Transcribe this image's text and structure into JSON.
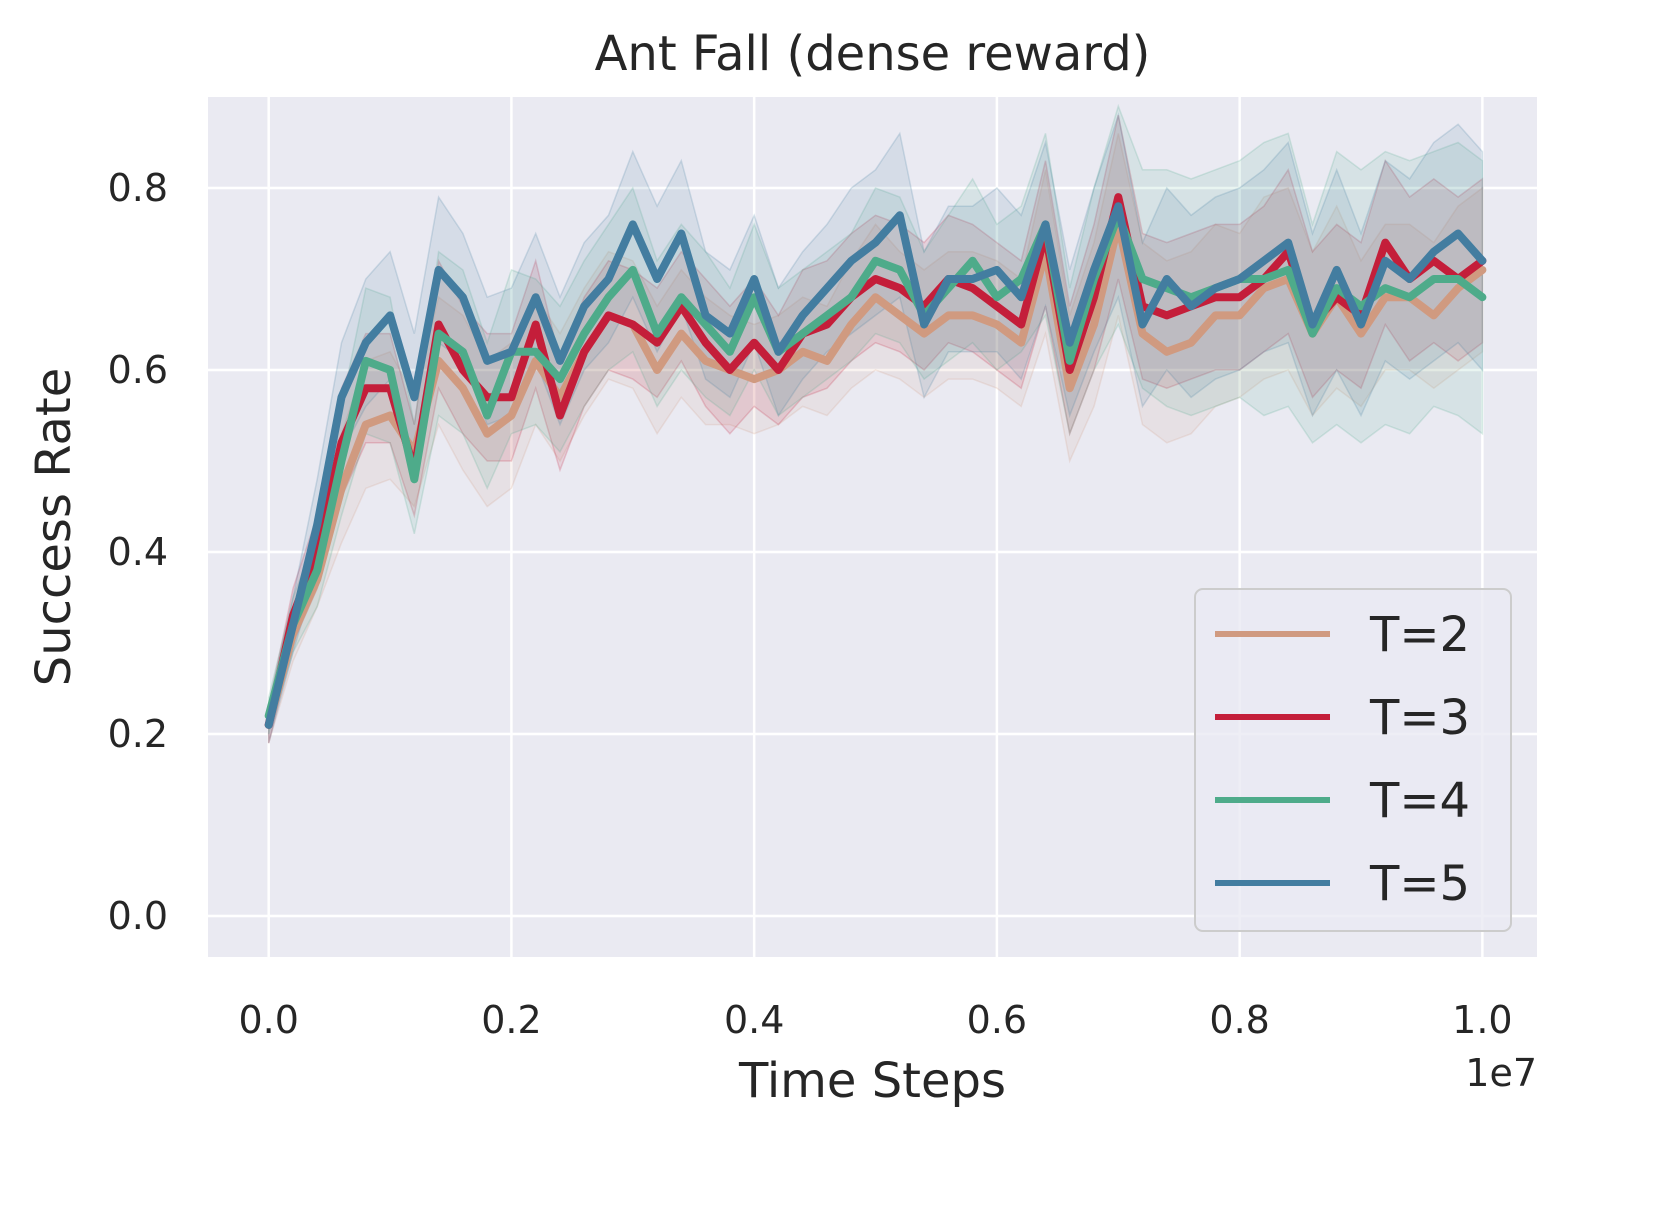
{
  "chart_data": {
    "type": "line",
    "title": "Ant Fall (dense reward)",
    "xlabel": "Time Steps",
    "ylabel": "Success Rate",
    "x_offset_label": "1e7",
    "xlim": [
      -0.05,
      1.045
    ],
    "ylim": [
      -0.045,
      0.9
    ],
    "xticks": [
      0.0,
      0.2,
      0.4,
      0.6,
      0.8,
      1.0
    ],
    "xtick_labels": [
      "0.0",
      "0.2",
      "0.4",
      "0.6",
      "0.8",
      "1.0"
    ],
    "yticks": [
      0.0,
      0.2,
      0.4,
      0.6,
      0.8
    ],
    "ytick_labels": [
      "0.0",
      "0.2",
      "0.4",
      "0.6",
      "0.8"
    ],
    "grid": true,
    "legend_position": "lower-right",
    "x": [
      0.0,
      0.02,
      0.04,
      0.06,
      0.08,
      0.1,
      0.12,
      0.14,
      0.16,
      0.18,
      0.2,
      0.22,
      0.24,
      0.26,
      0.28,
      0.3,
      0.32,
      0.34,
      0.36,
      0.38,
      0.4,
      0.42,
      0.44,
      0.46,
      0.48,
      0.5,
      0.52,
      0.54,
      0.56,
      0.58,
      0.6,
      0.62,
      0.64,
      0.66,
      0.68,
      0.7,
      0.72,
      0.74,
      0.76,
      0.78,
      0.8,
      0.82,
      0.84,
      0.86,
      0.88,
      0.9,
      0.92,
      0.94,
      0.96,
      0.98,
      1.0
    ],
    "series": [
      {
        "name": "T=2",
        "color": "#d09a80",
        "values": [
          0.21,
          0.31,
          0.37,
          0.47,
          0.54,
          0.55,
          0.51,
          0.61,
          0.58,
          0.53,
          0.55,
          0.61,
          0.57,
          0.62,
          0.66,
          0.65,
          0.6,
          0.64,
          0.61,
          0.6,
          0.59,
          0.6,
          0.62,
          0.61,
          0.65,
          0.68,
          0.66,
          0.64,
          0.66,
          0.66,
          0.65,
          0.63,
          0.73,
          0.58,
          0.65,
          0.76,
          0.64,
          0.62,
          0.63,
          0.66,
          0.66,
          0.69,
          0.7,
          0.64,
          0.68,
          0.64,
          0.68,
          0.68,
          0.66,
          0.69,
          0.71
        ],
        "lower": [
          0.19,
          0.28,
          0.34,
          0.41,
          0.47,
          0.48,
          0.45,
          0.54,
          0.49,
          0.45,
          0.47,
          0.54,
          0.5,
          0.55,
          0.59,
          0.58,
          0.53,
          0.57,
          0.54,
          0.54,
          0.53,
          0.54,
          0.56,
          0.55,
          0.58,
          0.6,
          0.59,
          0.57,
          0.59,
          0.59,
          0.58,
          0.56,
          0.64,
          0.5,
          0.56,
          0.66,
          0.54,
          0.52,
          0.53,
          0.56,
          0.57,
          0.59,
          0.6,
          0.55,
          0.58,
          0.56,
          0.6,
          0.6,
          0.58,
          0.6,
          0.62
        ],
        "upper": [
          0.23,
          0.34,
          0.4,
          0.53,
          0.61,
          0.62,
          0.57,
          0.68,
          0.66,
          0.61,
          0.63,
          0.68,
          0.64,
          0.69,
          0.73,
          0.72,
          0.67,
          0.71,
          0.68,
          0.66,
          0.65,
          0.66,
          0.68,
          0.67,
          0.72,
          0.76,
          0.73,
          0.71,
          0.73,
          0.73,
          0.72,
          0.7,
          0.82,
          0.66,
          0.74,
          0.86,
          0.74,
          0.72,
          0.73,
          0.76,
          0.75,
          0.79,
          0.8,
          0.73,
          0.78,
          0.72,
          0.76,
          0.76,
          0.74,
          0.78,
          0.8
        ]
      },
      {
        "name": "T=3",
        "color": "#c41e3a",
        "values": [
          0.21,
          0.33,
          0.4,
          0.52,
          0.58,
          0.58,
          0.49,
          0.65,
          0.6,
          0.57,
          0.57,
          0.65,
          0.55,
          0.62,
          0.66,
          0.65,
          0.63,
          0.67,
          0.63,
          0.6,
          0.63,
          0.6,
          0.64,
          0.65,
          0.68,
          0.7,
          0.69,
          0.67,
          0.7,
          0.69,
          0.67,
          0.65,
          0.75,
          0.6,
          0.68,
          0.79,
          0.67,
          0.66,
          0.67,
          0.68,
          0.68,
          0.7,
          0.73,
          0.65,
          0.68,
          0.66,
          0.74,
          0.7,
          0.72,
          0.7,
          0.72
        ],
        "lower": [
          0.19,
          0.3,
          0.36,
          0.46,
          0.52,
          0.52,
          0.44,
          0.58,
          0.53,
          0.5,
          0.5,
          0.58,
          0.49,
          0.56,
          0.6,
          0.59,
          0.57,
          0.61,
          0.56,
          0.53,
          0.56,
          0.54,
          0.57,
          0.58,
          0.61,
          0.63,
          0.62,
          0.6,
          0.63,
          0.62,
          0.6,
          0.58,
          0.67,
          0.53,
          0.6,
          0.7,
          0.59,
          0.58,
          0.59,
          0.6,
          0.6,
          0.62,
          0.64,
          0.57,
          0.6,
          0.58,
          0.65,
          0.61,
          0.63,
          0.61,
          0.63
        ],
        "upper": [
          0.23,
          0.36,
          0.44,
          0.58,
          0.64,
          0.64,
          0.54,
          0.72,
          0.67,
          0.64,
          0.64,
          0.72,
          0.61,
          0.68,
          0.72,
          0.71,
          0.69,
          0.73,
          0.7,
          0.67,
          0.7,
          0.66,
          0.71,
          0.72,
          0.75,
          0.77,
          0.76,
          0.74,
          0.77,
          0.76,
          0.74,
          0.72,
          0.83,
          0.67,
          0.76,
          0.88,
          0.75,
          0.74,
          0.75,
          0.76,
          0.76,
          0.78,
          0.82,
          0.73,
          0.76,
          0.74,
          0.83,
          0.79,
          0.81,
          0.79,
          0.81
        ]
      },
      {
        "name": "T=4",
        "color": "#4eab8a",
        "values": [
          0.22,
          0.32,
          0.38,
          0.5,
          0.61,
          0.6,
          0.48,
          0.64,
          0.62,
          0.55,
          0.62,
          0.62,
          0.59,
          0.64,
          0.68,
          0.71,
          0.64,
          0.68,
          0.65,
          0.62,
          0.68,
          0.62,
          0.64,
          0.66,
          0.68,
          0.72,
          0.71,
          0.66,
          0.69,
          0.72,
          0.68,
          0.7,
          0.76,
          0.61,
          0.7,
          0.77,
          0.7,
          0.69,
          0.68,
          0.69,
          0.7,
          0.7,
          0.71,
          0.64,
          0.69,
          0.67,
          0.69,
          0.68,
          0.7,
          0.7,
          0.68
        ],
        "lower": [
          0.2,
          0.29,
          0.34,
          0.44,
          0.53,
          0.52,
          0.42,
          0.55,
          0.53,
          0.47,
          0.53,
          0.54,
          0.51,
          0.56,
          0.6,
          0.62,
          0.56,
          0.6,
          0.57,
          0.55,
          0.6,
          0.55,
          0.57,
          0.59,
          0.61,
          0.64,
          0.63,
          0.59,
          0.61,
          0.63,
          0.6,
          0.62,
          0.66,
          0.53,
          0.6,
          0.65,
          0.58,
          0.56,
          0.55,
          0.56,
          0.57,
          0.55,
          0.56,
          0.52,
          0.54,
          0.52,
          0.54,
          0.53,
          0.56,
          0.55,
          0.53
        ],
        "upper": [
          0.24,
          0.35,
          0.42,
          0.56,
          0.69,
          0.68,
          0.54,
          0.73,
          0.71,
          0.63,
          0.71,
          0.7,
          0.67,
          0.72,
          0.76,
          0.8,
          0.72,
          0.76,
          0.73,
          0.69,
          0.76,
          0.69,
          0.71,
          0.73,
          0.75,
          0.8,
          0.79,
          0.73,
          0.77,
          0.81,
          0.76,
          0.78,
          0.86,
          0.69,
          0.8,
          0.89,
          0.82,
          0.82,
          0.81,
          0.82,
          0.83,
          0.85,
          0.86,
          0.76,
          0.84,
          0.82,
          0.84,
          0.83,
          0.84,
          0.85,
          0.83
        ]
      },
      {
        "name": "T=5",
        "color": "#437da0",
        "values": [
          0.21,
          0.32,
          0.43,
          0.57,
          0.63,
          0.66,
          0.57,
          0.71,
          0.68,
          0.61,
          0.62,
          0.68,
          0.61,
          0.67,
          0.7,
          0.76,
          0.7,
          0.75,
          0.66,
          0.64,
          0.7,
          0.62,
          0.66,
          0.69,
          0.72,
          0.74,
          0.77,
          0.65,
          0.7,
          0.7,
          0.71,
          0.68,
          0.76,
          0.63,
          0.71,
          0.78,
          0.65,
          0.7,
          0.67,
          0.69,
          0.7,
          0.72,
          0.74,
          0.65,
          0.71,
          0.65,
          0.72,
          0.7,
          0.73,
          0.75,
          0.72
        ],
        "lower": [
          0.19,
          0.29,
          0.38,
          0.51,
          0.56,
          0.59,
          0.5,
          0.63,
          0.61,
          0.54,
          0.55,
          0.61,
          0.54,
          0.6,
          0.63,
          0.68,
          0.62,
          0.67,
          0.59,
          0.57,
          0.63,
          0.55,
          0.59,
          0.62,
          0.64,
          0.66,
          0.68,
          0.57,
          0.62,
          0.62,
          0.62,
          0.59,
          0.67,
          0.55,
          0.62,
          0.68,
          0.56,
          0.6,
          0.57,
          0.59,
          0.6,
          0.62,
          0.63,
          0.55,
          0.6,
          0.55,
          0.61,
          0.59,
          0.61,
          0.63,
          0.6
        ],
        "upper": [
          0.23,
          0.35,
          0.48,
          0.63,
          0.7,
          0.73,
          0.64,
          0.79,
          0.75,
          0.68,
          0.69,
          0.75,
          0.68,
          0.74,
          0.77,
          0.84,
          0.78,
          0.83,
          0.73,
          0.71,
          0.77,
          0.69,
          0.73,
          0.76,
          0.8,
          0.82,
          0.86,
          0.73,
          0.78,
          0.78,
          0.8,
          0.77,
          0.85,
          0.71,
          0.8,
          0.88,
          0.74,
          0.8,
          0.77,
          0.79,
          0.8,
          0.82,
          0.85,
          0.75,
          0.82,
          0.75,
          0.83,
          0.81,
          0.85,
          0.87,
          0.84
        ]
      }
    ]
  }
}
